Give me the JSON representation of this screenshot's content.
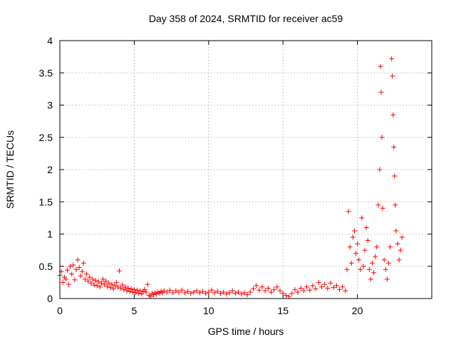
{
  "chart_data": {
    "type": "scatter",
    "title": "Day 358 of 2024, SRMTID for receiver ac59",
    "xlabel": "GPS time / hours",
    "ylabel": "SRMTID / TECUs",
    "xlim": [
      0,
      25
    ],
    "ylim": [
      0,
      4
    ],
    "xticks": [
      0,
      5,
      10,
      15,
      20
    ],
    "xtick_labels": [
      "0",
      "5",
      "10",
      "15",
      "20"
    ],
    "yticks": [
      0,
      0.5,
      1,
      1.5,
      2,
      2.5,
      3,
      3.5,
      4
    ],
    "ytick_labels": [
      "0",
      "0.5",
      "1",
      "1.5",
      "2",
      "2.5",
      "3",
      "3.5",
      "4"
    ],
    "grid": true,
    "marker": "+",
    "color": "#ff0000",
    "series": [
      {
        "name": "SRMTID",
        "points": [
          [
            0.0,
            0.36
          ],
          [
            0.1,
            0.42
          ],
          [
            0.2,
            0.25
          ],
          [
            0.3,
            0.33
          ],
          [
            0.4,
            0.3
          ],
          [
            0.5,
            0.44
          ],
          [
            0.6,
            0.22
          ],
          [
            0.7,
            0.5
          ],
          [
            0.8,
            0.38
          ],
          [
            0.9,
            0.52
          ],
          [
            1.0,
            0.29
          ],
          [
            1.1,
            0.45
          ],
          [
            1.2,
            0.6
          ],
          [
            1.3,
            0.48
          ],
          [
            1.4,
            0.35
          ],
          [
            1.5,
            0.42
          ],
          [
            1.6,
            0.55
          ],
          [
            1.7,
            0.3
          ],
          [
            1.8,
            0.38
          ],
          [
            1.9,
            0.27
          ],
          [
            2.0,
            0.33
          ],
          [
            2.1,
            0.24
          ],
          [
            2.2,
            0.3
          ],
          [
            2.3,
            0.21
          ],
          [
            2.4,
            0.28
          ],
          [
            2.5,
            0.2
          ],
          [
            2.6,
            0.26
          ],
          [
            2.7,
            0.18
          ],
          [
            2.8,
            0.24
          ],
          [
            2.9,
            0.3
          ],
          [
            3.0,
            0.22
          ],
          [
            3.1,
            0.27
          ],
          [
            3.2,
            0.19
          ],
          [
            3.3,
            0.24
          ],
          [
            3.4,
            0.17
          ],
          [
            3.5,
            0.22
          ],
          [
            3.6,
            0.15
          ],
          [
            3.7,
            0.2
          ],
          [
            3.8,
            0.25
          ],
          [
            3.9,
            0.18
          ],
          [
            4.0,
            0.43
          ],
          [
            4.1,
            0.16
          ],
          [
            4.2,
            0.21
          ],
          [
            4.3,
            0.14
          ],
          [
            4.4,
            0.18
          ],
          [
            4.5,
            0.12
          ],
          [
            4.6,
            0.16
          ],
          [
            4.7,
            0.11
          ],
          [
            4.8,
            0.15
          ],
          [
            4.9,
            0.1
          ],
          [
            5.0,
            0.14
          ],
          [
            5.1,
            0.09
          ],
          [
            5.2,
            0.13
          ],
          [
            5.3,
            0.08
          ],
          [
            5.4,
            0.12
          ],
          [
            5.5,
            0.07
          ],
          [
            5.6,
            0.11
          ],
          [
            5.7,
            0.14
          ],
          [
            5.8,
            0.1
          ],
          [
            5.9,
            0.22
          ],
          [
            6.0,
            0.05
          ],
          [
            6.1,
            0.03
          ],
          [
            6.2,
            0.08
          ],
          [
            6.3,
            0.06
          ],
          [
            6.4,
            0.09
          ],
          [
            6.5,
            0.07
          ],
          [
            6.6,
            0.1
          ],
          [
            6.7,
            0.08
          ],
          [
            6.8,
            0.11
          ],
          [
            6.9,
            0.09
          ],
          [
            7.0,
            0.12
          ],
          [
            7.2,
            0.1
          ],
          [
            7.4,
            0.13
          ],
          [
            7.6,
            0.09
          ],
          [
            7.8,
            0.12
          ],
          [
            8.0,
            0.1
          ],
          [
            8.2,
            0.13
          ],
          [
            8.4,
            0.09
          ],
          [
            8.6,
            0.11
          ],
          [
            8.8,
            0.08
          ],
          [
            9.0,
            0.1
          ],
          [
            9.2,
            0.12
          ],
          [
            9.4,
            0.09
          ],
          [
            9.6,
            0.11
          ],
          [
            9.8,
            0.08
          ],
          [
            10.0,
            0.1
          ],
          [
            10.2,
            0.13
          ],
          [
            10.4,
            0.09
          ],
          [
            10.6,
            0.11
          ],
          [
            10.8,
            0.08
          ],
          [
            11.0,
            0.1
          ],
          [
            11.2,
            0.07
          ],
          [
            11.4,
            0.09
          ],
          [
            11.6,
            0.12
          ],
          [
            11.8,
            0.08
          ],
          [
            12.0,
            0.1
          ],
          [
            12.2,
            0.07
          ],
          [
            12.4,
            0.09
          ],
          [
            12.6,
            0.06
          ],
          [
            12.8,
            0.1
          ],
          [
            13.0,
            0.15
          ],
          [
            13.2,
            0.2
          ],
          [
            13.4,
            0.13
          ],
          [
            13.6,
            0.18
          ],
          [
            13.8,
            0.12
          ],
          [
            14.0,
            0.16
          ],
          [
            14.2,
            0.1
          ],
          [
            14.4,
            0.14
          ],
          [
            14.6,
            0.18
          ],
          [
            14.8,
            0.12
          ],
          [
            15.0,
            0.08
          ],
          [
            15.2,
            0.05
          ],
          [
            15.4,
            0.03
          ],
          [
            15.6,
            0.08
          ],
          [
            15.8,
            0.14
          ],
          [
            16.0,
            0.1
          ],
          [
            16.2,
            0.16
          ],
          [
            16.4,
            0.12
          ],
          [
            16.6,
            0.18
          ],
          [
            16.8,
            0.13
          ],
          [
            17.0,
            0.2
          ],
          [
            17.2,
            0.15
          ],
          [
            17.4,
            0.25
          ],
          [
            17.6,
            0.18
          ],
          [
            17.8,
            0.22
          ],
          [
            18.0,
            0.16
          ],
          [
            18.2,
            0.24
          ],
          [
            18.4,
            0.17
          ],
          [
            18.6,
            0.2
          ],
          [
            18.8,
            0.14
          ],
          [
            19.0,
            0.18
          ],
          [
            19.2,
            0.12
          ],
          [
            19.3,
            0.45
          ],
          [
            19.4,
            1.35
          ],
          [
            19.5,
            0.8
          ],
          [
            19.6,
            0.55
          ],
          [
            19.7,
            0.95
          ],
          [
            19.8,
            1.05
          ],
          [
            19.9,
            0.7
          ],
          [
            20.0,
            0.85
          ],
          [
            20.1,
            0.6
          ],
          [
            20.2,
            0.45
          ],
          [
            20.3,
            1.25
          ],
          [
            20.4,
            0.5
          ],
          [
            20.5,
            0.75
          ],
          [
            20.6,
            1.1
          ],
          [
            20.7,
            0.9
          ],
          [
            20.8,
            0.45
          ],
          [
            20.9,
            0.3
          ],
          [
            21.0,
            0.55
          ],
          [
            21.1,
            0.4
          ],
          [
            21.2,
            0.65
          ],
          [
            21.3,
            0.8
          ],
          [
            21.4,
            1.45
          ],
          [
            21.5,
            2.0
          ],
          [
            21.55,
            3.6
          ],
          [
            21.6,
            3.2
          ],
          [
            21.65,
            2.5
          ],
          [
            21.7,
            1.4
          ],
          [
            21.8,
            0.6
          ],
          [
            21.9,
            0.45
          ],
          [
            22.0,
            0.3
          ],
          [
            22.1,
            0.55
          ],
          [
            22.2,
            0.8
          ],
          [
            22.3,
            3.72
          ],
          [
            22.35,
            3.45
          ],
          [
            22.4,
            2.85
          ],
          [
            22.45,
            2.35
          ],
          [
            22.5,
            1.9
          ],
          [
            22.55,
            1.45
          ],
          [
            22.6,
            1.05
          ],
          [
            22.7,
            0.85
          ],
          [
            22.8,
            0.6
          ],
          [
            22.9,
            0.75
          ],
          [
            23.0,
            0.95
          ]
        ]
      }
    ]
  }
}
